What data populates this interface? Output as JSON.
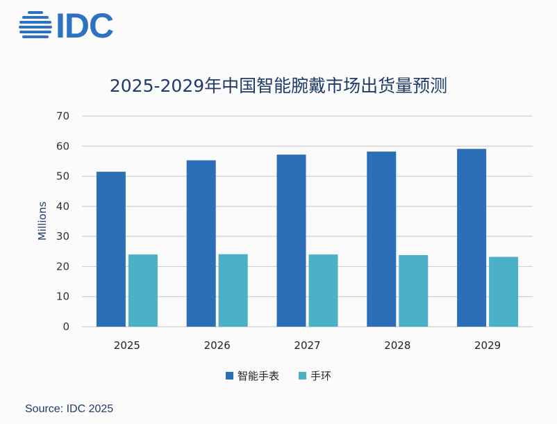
{
  "logo": {
    "text": "IDC"
  },
  "chart_data": {
    "type": "bar",
    "title": "2025-2029年中国智能腕戴市场出货量预测",
    "xlabel": "",
    "ylabel": "Millions",
    "ylim": [
      0,
      70
    ],
    "yticks": [
      0,
      10,
      20,
      30,
      40,
      50,
      60,
      70
    ],
    "grid": true,
    "legend_position": "bottom",
    "categories": [
      "2025",
      "2026",
      "2027",
      "2028",
      "2029"
    ],
    "series": [
      {
        "name": "智能手表",
        "color": "#2d6fb7",
        "values": [
          51.5,
          55.3,
          57.2,
          58.2,
          59.1
        ]
      },
      {
        "name": "手环",
        "color": "#4ab1c7",
        "values": [
          24.0,
          24.1,
          24.0,
          23.8,
          23.2
        ]
      }
    ]
  },
  "source": "Source: IDC 2025"
}
